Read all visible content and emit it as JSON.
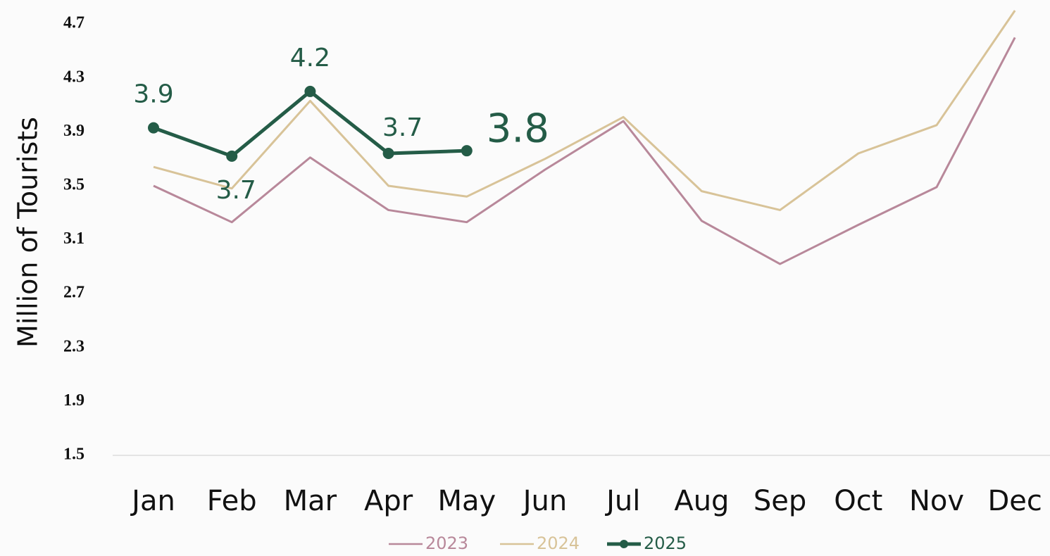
{
  "chart_data": {
    "type": "line",
    "y_label": "Million of Tourists",
    "categories": [
      "Jan",
      "Feb",
      "Mar",
      "Apr",
      "May",
      "Jun",
      "Jul",
      "Aug",
      "Sep",
      "Oct",
      "Nov",
      "Dec"
    ],
    "series": [
      {
        "name": "2023",
        "color": "#b8889a",
        "values": [
          3.5,
          3.23,
          3.71,
          3.32,
          3.23,
          3.62,
          3.98,
          3.24,
          2.92,
          3.21,
          3.49,
          4.6
        ]
      },
      {
        "name": "2024",
        "color": "#d8c398",
        "values": [
          3.64,
          3.48,
          4.13,
          3.5,
          3.42,
          3.7,
          4.01,
          3.46,
          3.32,
          3.74,
          3.95,
          4.8
        ]
      },
      {
        "name": "2025",
        "color": "#245c47",
        "values": [
          3.93,
          3.72,
          4.2,
          3.74,
          3.76,
          null,
          null,
          null,
          null,
          null,
          null,
          null
        ],
        "value_labels": [
          "3.9",
          "3.7",
          "4.2",
          "3.7",
          "3.8",
          null,
          null,
          null,
          null,
          null,
          null,
          null
        ]
      }
    ],
    "ylim": [
      1.5,
      4.8
    ],
    "yticks": [
      1.5,
      1.9,
      2.3,
      2.7,
      3.1,
      3.5,
      3.9,
      4.3,
      4.7
    ],
    "grid": false,
    "legend": "bottom"
  }
}
